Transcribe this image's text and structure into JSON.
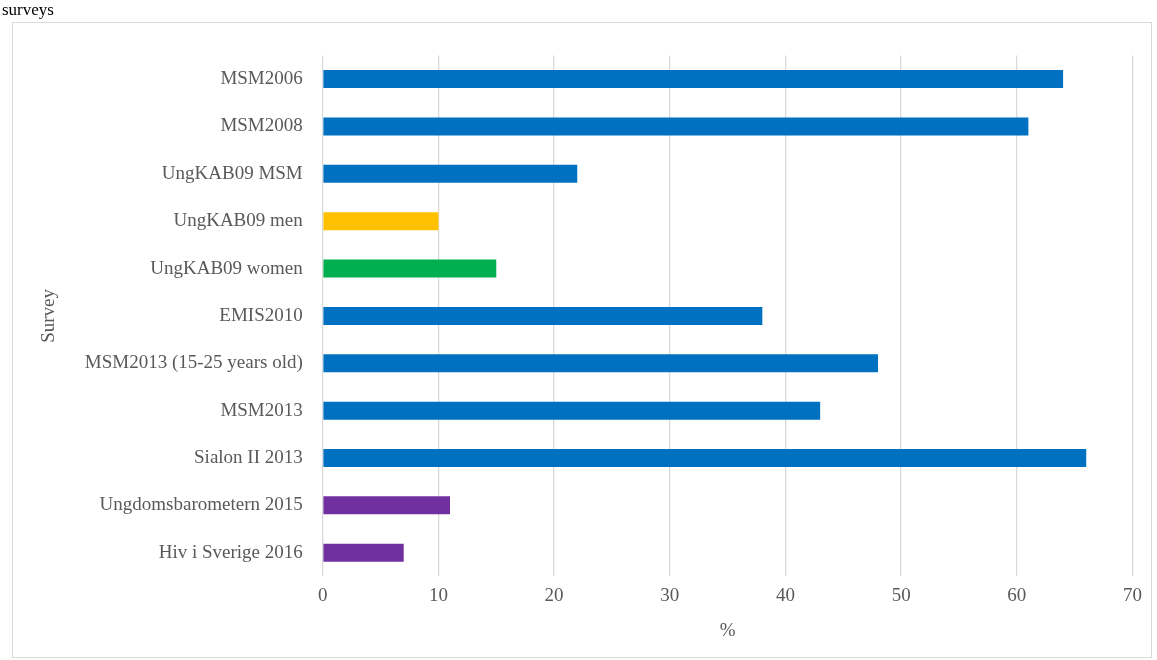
{
  "chart_data": {
    "type": "bar",
    "orientation": "horizontal",
    "title": "surveys",
    "xlabel": "%",
    "ylabel": "Survey",
    "categories": [
      "MSM2006",
      "MSM2008",
      "UngKAB09 MSM",
      "UngKAB09 men",
      "UngKAB09 women",
      "EMIS2010",
      "MSM2013 (15-25 years old)",
      "MSM2013",
      "Sialon II 2013",
      "Ungdomsbarometern 2015",
      "Hiv i Sverige 2016"
    ],
    "values": [
      64,
      61,
      22,
      10,
      15,
      38,
      48,
      43,
      66,
      11,
      7
    ],
    "colors": [
      "#0070c0",
      "#0070c0",
      "#0070c0",
      "#ffc000",
      "#00b050",
      "#0070c0",
      "#0070c0",
      "#0070c0",
      "#0070c0",
      "#7030a0",
      "#7030a0"
    ],
    "xlim": [
      0,
      70
    ],
    "xticks": [
      0,
      10,
      20,
      30,
      40,
      50,
      60,
      70
    ],
    "grid": "x",
    "legend": false
  }
}
